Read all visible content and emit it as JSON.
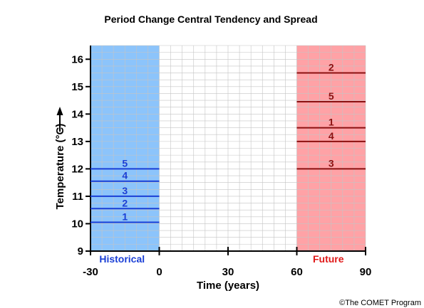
{
  "chart_data": {
    "type": "line",
    "title": "Period Change Central Tendency and Spread",
    "xlabel": "Time (years)",
    "ylabel": "Temperature (°C)",
    "xlim": [
      -30,
      90
    ],
    "ylim": [
      9,
      16.5
    ],
    "x_ticks": [
      -30,
      0,
      30,
      60,
      90
    ],
    "y_ticks": [
      9,
      10,
      11,
      12,
      13,
      14,
      15,
      16
    ],
    "grid": true,
    "regions": [
      {
        "name": "Historical",
        "x_range": [
          -30,
          0
        ],
        "color": "#8cc4fb",
        "label_color": "#1a3fd6"
      },
      {
        "name": "Future",
        "x_range": [
          60,
          90
        ],
        "color": "#ffa2a6",
        "label_color": "#e01818"
      }
    ],
    "series": [
      {
        "region": "Historical",
        "color": "#1a3fd6",
        "lines": [
          {
            "label": "1",
            "value": 10.05
          },
          {
            "label": "2",
            "value": 10.55
          },
          {
            "label": "3",
            "value": 11.0
          },
          {
            "label": "4",
            "value": 11.55
          },
          {
            "label": "5",
            "value": 12.0
          }
        ]
      },
      {
        "region": "Future",
        "color": "#8b1010",
        "lines": [
          {
            "label": "3",
            "value": 12.0
          },
          {
            "label": "4",
            "value": 13.0
          },
          {
            "label": "1",
            "value": 13.5
          },
          {
            "label": "5",
            "value": 14.45
          },
          {
            "label": "2",
            "value": 15.5
          }
        ]
      }
    ]
  },
  "credit": "©The COMET Program"
}
